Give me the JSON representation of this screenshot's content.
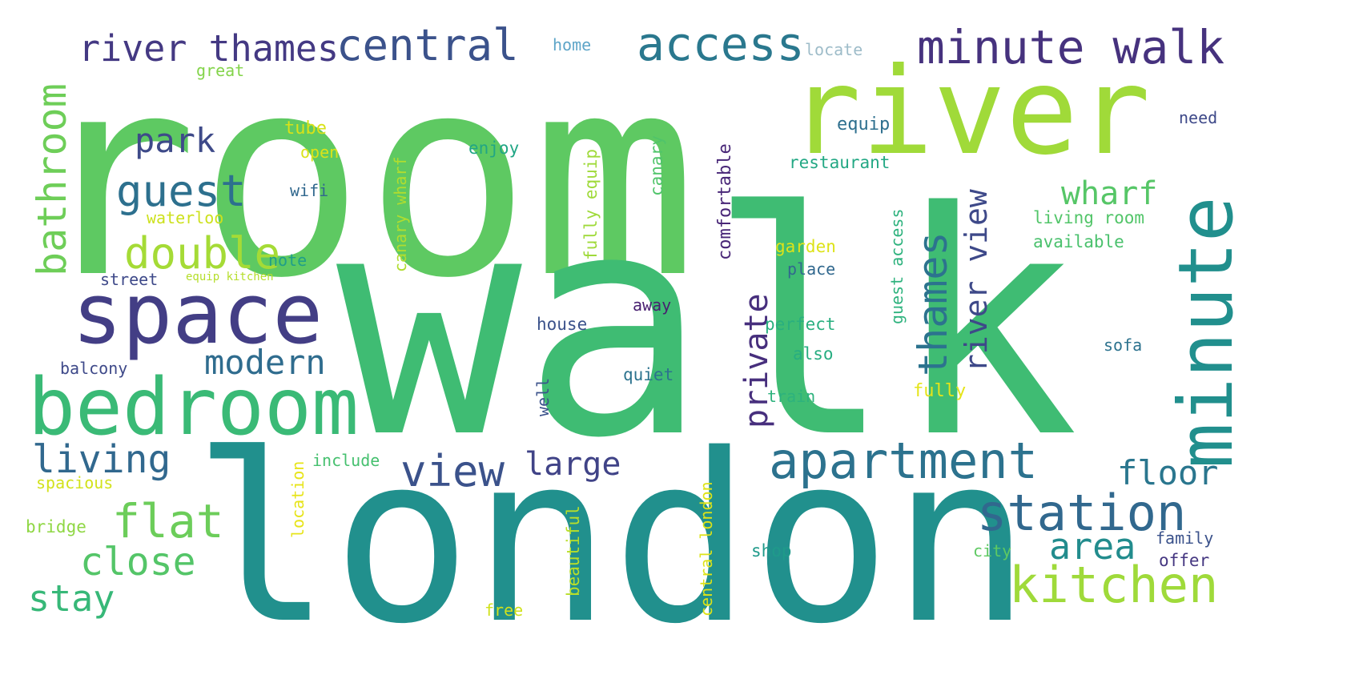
{
  "words": [
    {
      "text": "room",
      "color": "#5ec962"
    },
    {
      "text": "walk",
      "color": "#3fbc73"
    },
    {
      "text": "london",
      "color": "#21908d"
    },
    {
      "text": "river",
      "color": "#a0da39"
    },
    {
      "text": "minute walk",
      "color": "#46327e"
    },
    {
      "text": "space",
      "color": "#433e85"
    },
    {
      "text": "bedroom",
      "color": "#3aba76"
    },
    {
      "text": "apartment",
      "color": "#2c728e"
    },
    {
      "text": "minute",
      "color": "#218f8d"
    },
    {
      "text": "kitchen",
      "color": "#9fda3a"
    },
    {
      "text": "station",
      "color": "#31688e"
    },
    {
      "text": "river thames",
      "color": "#443983"
    },
    {
      "text": "central",
      "color": "#3b528b"
    },
    {
      "text": "access",
      "color": "#2a788e"
    },
    {
      "text": "bathroom",
      "color": "#6ece58"
    },
    {
      "text": "guest",
      "color": "#2d708e"
    },
    {
      "text": "park",
      "color": "#3e4a89"
    },
    {
      "text": "double",
      "color": "#a5db36"
    },
    {
      "text": "view",
      "color": "#3b528b"
    },
    {
      "text": "flat",
      "color": "#6ccd5a"
    },
    {
      "text": "close",
      "color": "#54c568"
    },
    {
      "text": "stay",
      "color": "#37b878"
    },
    {
      "text": "living",
      "color": "#31688e"
    },
    {
      "text": "modern",
      "color": "#2f6c8e"
    },
    {
      "text": "large",
      "color": "#404387"
    },
    {
      "text": "thames",
      "color": "#2c738e"
    },
    {
      "text": "river view",
      "color": "#3e4989"
    },
    {
      "text": "private",
      "color": "#472f7d"
    },
    {
      "text": "wharf",
      "color": "#56c667"
    },
    {
      "text": "floor",
      "color": "#2a768e"
    },
    {
      "text": "area",
      "color": "#228c8d"
    },
    {
      "text": "home",
      "color": "#5ea5c8"
    },
    {
      "text": "locate",
      "color": "#9ebcc9"
    },
    {
      "text": "great",
      "color": "#84d44b"
    },
    {
      "text": "tube",
      "color": "#d8e219"
    },
    {
      "text": "open",
      "color": "#dae319"
    },
    {
      "text": "enjoy",
      "color": "#21a685"
    },
    {
      "text": "equip",
      "color": "#2e6f8e"
    },
    {
      "text": "need",
      "color": "#3e4989"
    },
    {
      "text": "restaurant",
      "color": "#23a884"
    },
    {
      "text": "wifi",
      "color": "#31688e"
    },
    {
      "text": "waterloo",
      "color": "#cde11d"
    },
    {
      "text": "canary wharf",
      "color": "#b0dd2f"
    },
    {
      "text": "fully equip",
      "color": "#9fda3a"
    },
    {
      "text": "canary",
      "color": "#50c46a"
    },
    {
      "text": "comfortable",
      "color": "#482677"
    },
    {
      "text": "living room",
      "color": "#52c569"
    },
    {
      "text": "available",
      "color": "#4ac16d"
    },
    {
      "text": "note",
      "color": "#1f9e89"
    },
    {
      "text": "street",
      "color": "#3e4989"
    },
    {
      "text": "equip kitchen",
      "color": "#b5de2b"
    },
    {
      "text": "garden",
      "color": "#dde318"
    },
    {
      "text": "place",
      "color": "#31688e"
    },
    {
      "text": "guest access",
      "color": "#2db27d"
    },
    {
      "text": "away",
      "color": "#481f70"
    },
    {
      "text": "house",
      "color": "#3b528b"
    },
    {
      "text": "perfect",
      "color": "#29af7f"
    },
    {
      "text": "also",
      "color": "#27ad81"
    },
    {
      "text": "sofa",
      "color": "#2c728e"
    },
    {
      "text": "balcony",
      "color": "#3e4989"
    },
    {
      "text": "quiet",
      "color": "#2c738e"
    },
    {
      "text": "train",
      "color": "#2db27d"
    },
    {
      "text": "fully",
      "color": "#e5e419"
    },
    {
      "text": "well",
      "color": "#3b528b"
    },
    {
      "text": "include",
      "color": "#46c06f"
    },
    {
      "text": "spacious",
      "color": "#d2e21b"
    },
    {
      "text": "location",
      "color": "#e7e419"
    },
    {
      "text": "central london",
      "color": "#dde318"
    },
    {
      "text": "beautiful",
      "color": "#b8de29"
    },
    {
      "text": "bridge",
      "color": "#8fd744"
    },
    {
      "text": "city",
      "color": "#5ec962"
    },
    {
      "text": "shop",
      "color": "#1f9a8a"
    },
    {
      "text": "family",
      "color": "#3b528b"
    },
    {
      "text": "offer",
      "color": "#453781"
    },
    {
      "text": "free",
      "color": "#d0e11c"
    }
  ]
}
